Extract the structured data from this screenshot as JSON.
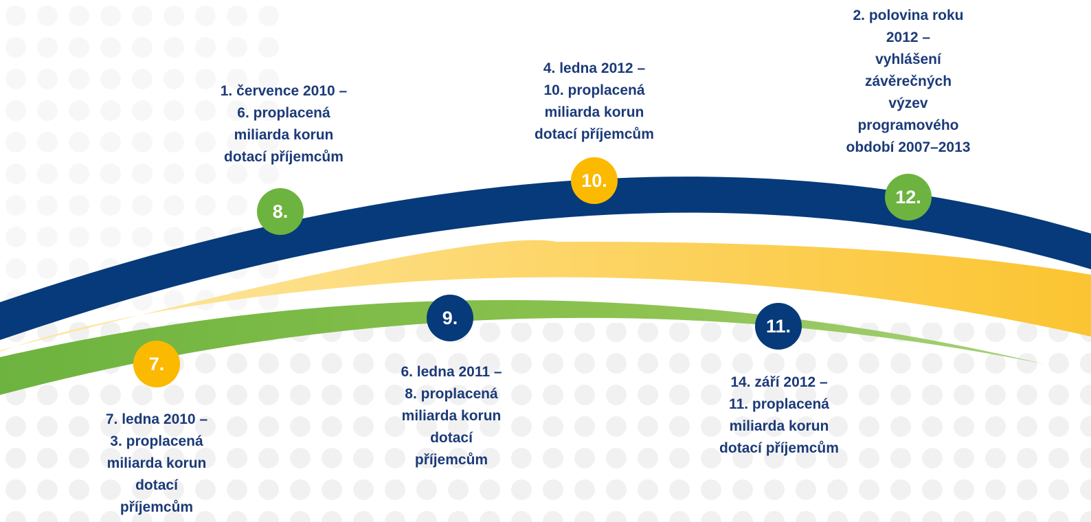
{
  "milestones": [
    {
      "number": "7.",
      "text": [
        "7. ledna 2010 –",
        "3. proplacená",
        "miliarda korun",
        "dotací",
        "příjemcům"
      ]
    },
    {
      "number": "8.",
      "text": [
        "1. července 2010 –",
        "6. proplacená",
        "miliarda korun",
        "dotací příjemcům"
      ]
    },
    {
      "number": "9.",
      "text": [
        "6. ledna 2011 –",
        "8. proplacená",
        "miliarda korun",
        "dotací",
        "příjemcům"
      ]
    },
    {
      "number": "10.",
      "text": [
        "4. ledna 2012 –",
        "10. proplacená",
        "miliarda korun",
        "dotací příjemcům"
      ]
    },
    {
      "number": "11.",
      "text": [
        "14. září 2012 –",
        "11. proplacená",
        "miliarda korun",
        "dotací příjemcům"
      ]
    },
    {
      "number": "12.",
      "text": [
        "2. polovina roku",
        "2012 –",
        "vyhlášení",
        "závěrečných",
        "výzev",
        "programového",
        "období 2007–2013"
      ]
    }
  ]
}
